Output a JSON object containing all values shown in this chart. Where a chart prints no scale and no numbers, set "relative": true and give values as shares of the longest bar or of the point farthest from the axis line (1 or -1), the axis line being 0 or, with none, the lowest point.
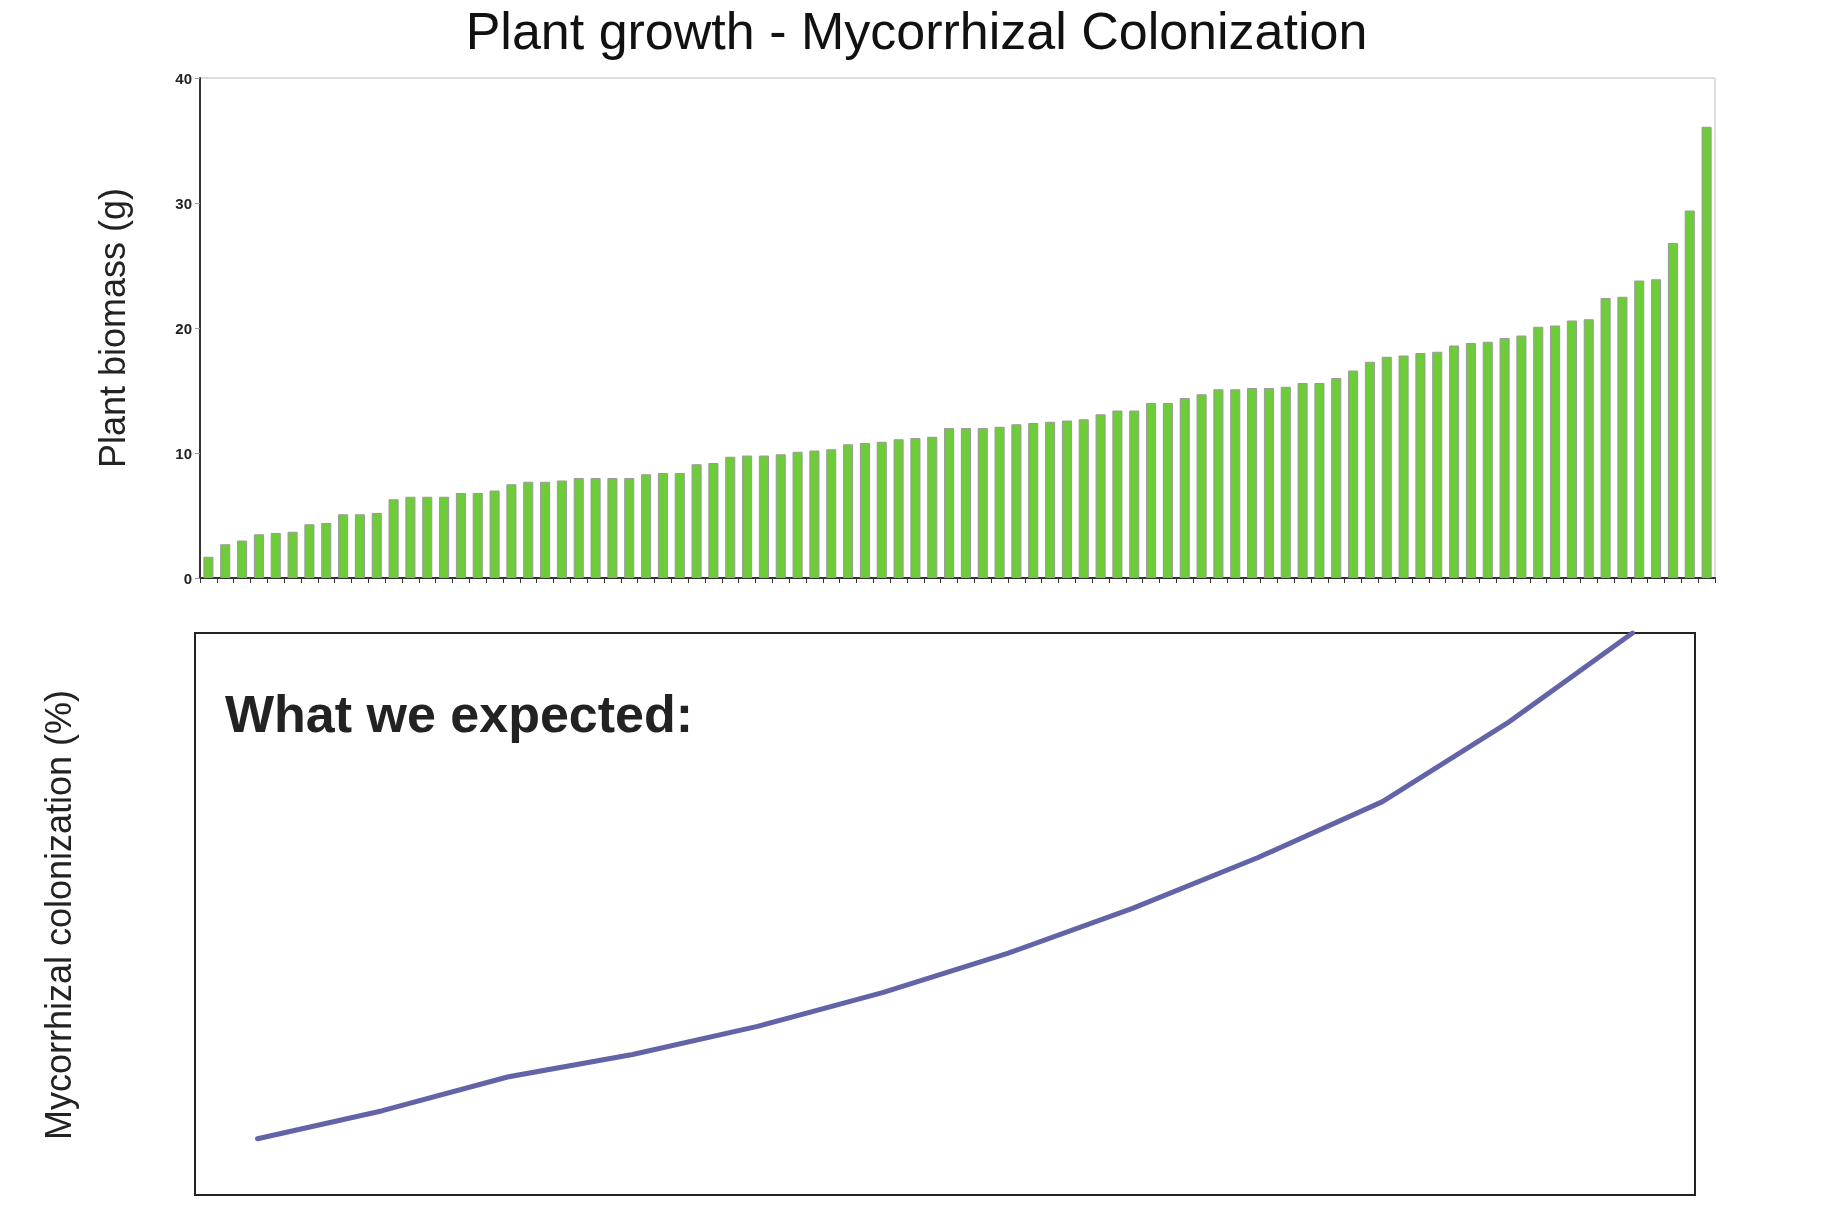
{
  "chart_data": [
    {
      "type": "bar",
      "title": "Plant growth - Mycorrhizal Colonization",
      "ylabel": "Plant biomass (g)",
      "categories": [
        null,
        null,
        null,
        null,
        null,
        null,
        null,
        null,
        null,
        null,
        null,
        null,
        null,
        null,
        null,
        null,
        null,
        null,
        null,
        null,
        null,
        null,
        null,
        null,
        null,
        null,
        null,
        null,
        null,
        null,
        null,
        null,
        null,
        null,
        null,
        null,
        null,
        null,
        null,
        null,
        null,
        null,
        null,
        null,
        null,
        null,
        null,
        null,
        null,
        null,
        null,
        null,
        null,
        null,
        null,
        null,
        null,
        null,
        null,
        null,
        null,
        null,
        null,
        null,
        null,
        null,
        null,
        null,
        null,
        null,
        null,
        null,
        null,
        null,
        null,
        null,
        null,
        null,
        null,
        null,
        null,
        null,
        null,
        null,
        null,
        null,
        null,
        null,
        null,
        null
      ],
      "values": [
        1.7,
        2.7,
        3.0,
        3.5,
        3.6,
        3.7,
        4.3,
        4.4,
        5.1,
        5.1,
        5.2,
        6.3,
        6.5,
        6.5,
        6.5,
        6.8,
        6.8,
        7.0,
        7.5,
        7.7,
        7.7,
        7.8,
        8.0,
        8.0,
        8.0,
        8.0,
        8.3,
        8.4,
        8.4,
        9.1,
        9.2,
        9.7,
        9.8,
        9.8,
        9.9,
        10.1,
        10.2,
        10.3,
        10.7,
        10.8,
        10.9,
        11.1,
        11.2,
        11.3,
        12.0,
        12.0,
        12.0,
        12.1,
        12.3,
        12.4,
        12.5,
        12.6,
        12.7,
        13.1,
        13.4,
        13.4,
        14.0,
        14.0,
        14.4,
        14.7,
        15.1,
        15.1,
        15.2,
        15.2,
        15.3,
        15.6,
        15.6,
        16.0,
        16.6,
        17.3,
        17.7,
        17.8,
        18.0,
        18.1,
        18.6,
        18.8,
        18.9,
        19.2,
        19.4,
        20.1,
        20.2,
        20.6,
        20.7,
        22.4,
        22.5,
        23.8,
        23.9,
        26.8,
        29.4,
        36.1
      ],
      "color": "#6ecc39",
      "ylim": [
        0,
        40
      ],
      "yticks": [
        0,
        10,
        20,
        30,
        40
      ],
      "grid": false,
      "tick_labels": "y"
    },
    {
      "type": "line",
      "relative": true,
      "ylabel": "Mycorrhizal colonization (%)",
      "annotations": [
        "What we expected:"
      ],
      "categories": [
        null,
        null,
        null,
        null,
        null,
        null,
        null,
        null,
        null,
        null,
        null,
        null
      ],
      "series": [
        {
          "color": "#6264a7",
          "values": [
            0.1,
            0.15,
            0.21,
            0.25,
            0.3,
            0.36,
            0.43,
            0.51,
            0.6,
            0.7,
            0.84,
            1.0
          ]
        }
      ],
      "marker": "none",
      "line_style": "solid",
      "grid": false,
      "tick_labels": false
    }
  ]
}
